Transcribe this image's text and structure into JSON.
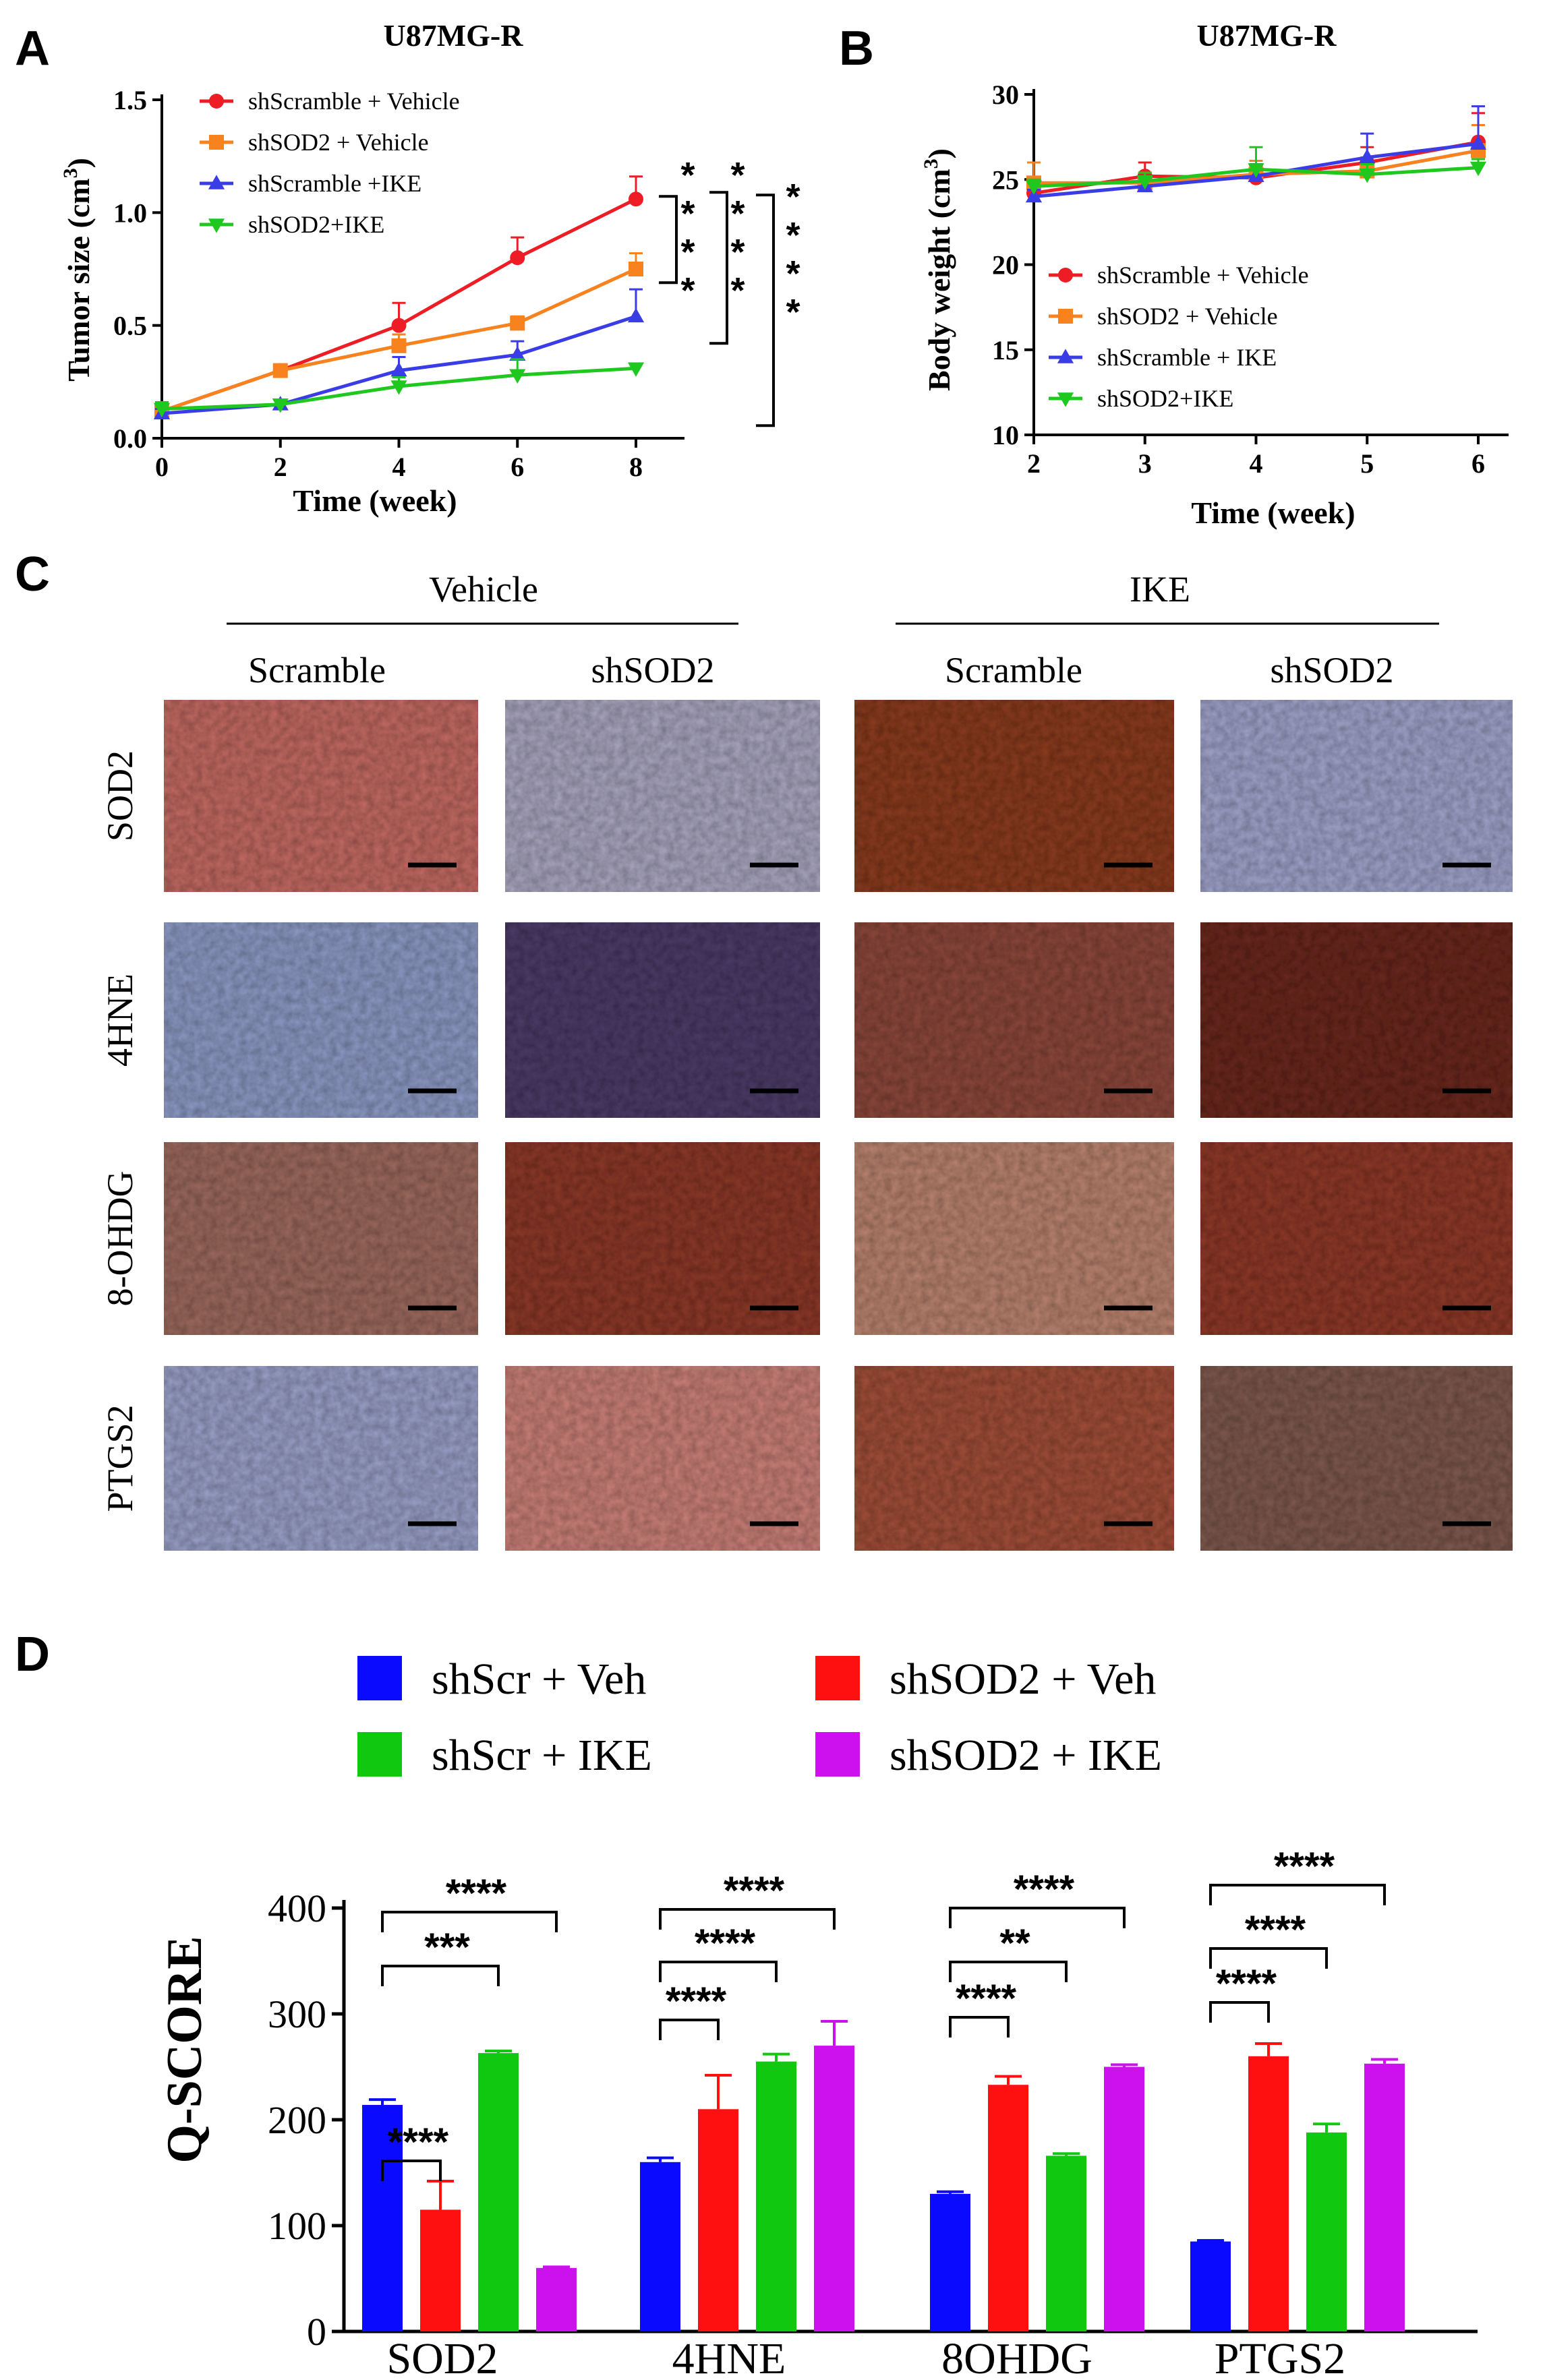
{
  "panels": {
    "A": "A",
    "B": "B",
    "C": "C",
    "D": "D"
  },
  "chart_data": [
    {
      "id": "A",
      "type": "line",
      "title": "U87MG-R",
      "xlabel": "Time (week)",
      "ylabel": "Tumor size (cm3)",
      "ylabel_main": "Tumor size (cm",
      "ylabel_sup": "3",
      "ylabel_end": ")",
      "x": [
        0,
        2,
        4,
        6,
        8
      ],
      "xticks": [
        "0",
        "2",
        "4",
        "6",
        "8"
      ],
      "yticks": [
        "0.0",
        "0.5",
        "1.0",
        "1.5"
      ],
      "xlim": [
        0,
        8
      ],
      "ylim": [
        0,
        1.5
      ],
      "legend_position": "top-left",
      "series": [
        {
          "name": "shScramble + Vehicle",
          "color": "#ee1c24",
          "marker": "circle",
          "values": [
            0.12,
            0.3,
            0.5,
            0.8,
            1.06
          ],
          "errors": [
            0.02,
            0.02,
            0.1,
            0.09,
            0.1
          ]
        },
        {
          "name": "shSOD2 + Vehicle",
          "color": "#f7821e",
          "marker": "square",
          "values": [
            0.12,
            0.3,
            0.41,
            0.51,
            0.75
          ],
          "errors": [
            0.02,
            0.02,
            0.05,
            0.03,
            0.07
          ]
        },
        {
          "name": "shScramble +IKE",
          "color": "#3a3ce6",
          "marker": "triangle-up",
          "values": [
            0.11,
            0.15,
            0.3,
            0.37,
            0.54
          ],
          "errors": [
            0.02,
            0.02,
            0.06,
            0.06,
            0.12
          ]
        },
        {
          "name": "shSOD2+IKE",
          "color": "#1ec81e",
          "marker": "triangle-down",
          "values": [
            0.13,
            0.15,
            0.23,
            0.28,
            0.31
          ],
          "errors": [
            0.03,
            0.02,
            0.04,
            0.07,
            0.02
          ]
        }
      ],
      "significance": [
        "****",
        "****",
        "****"
      ]
    },
    {
      "id": "B",
      "type": "line",
      "title": "U87MG-R",
      "xlabel": "Time (week)",
      "ylabel": "Body weight (cm3)",
      "ylabel_main": "Body weight (cm",
      "ylabel_sup": "3",
      "ylabel_end": ")",
      "x": [
        2,
        3,
        4,
        5,
        6
      ],
      "xticks": [
        "2",
        "3",
        "4",
        "5",
        "6"
      ],
      "yticks": [
        "10",
        "15",
        "20",
        "25",
        "30"
      ],
      "xlim": [
        2,
        6
      ],
      "ylim": [
        10,
        30
      ],
      "legend_position": "center-left",
      "series": [
        {
          "name": "shScramble + Vehicle",
          "color": "#ee1c24",
          "marker": "circle",
          "values": [
            24.2,
            25.2,
            25.1,
            26.0,
            27.2
          ],
          "errors": [
            0.5,
            0.8,
            0.7,
            0.9,
            1.7
          ]
        },
        {
          "name": "shSOD2 + Vehicle",
          "color": "#f7821e",
          "marker": "square",
          "values": [
            24.8,
            24.8,
            25.3,
            25.5,
            26.7
          ],
          "errors": [
            1.2,
            0.6,
            0.8,
            0.8,
            1.5
          ]
        },
        {
          "name": "shScramble + IKE",
          "color": "#3a3ce6",
          "marker": "triangle-up",
          "values": [
            24.0,
            24.6,
            25.2,
            26.3,
            27.1
          ],
          "errors": [
            0.4,
            0.5,
            0.7,
            1.4,
            2.2
          ]
        },
        {
          "name": "shSOD2+IKE",
          "color": "#1ec81e",
          "marker": "triangle-down",
          "values": [
            24.6,
            24.9,
            25.6,
            25.3,
            25.7
          ],
          "errors": [
            0.4,
            0.5,
            1.3,
            0.6,
            0.5
          ]
        }
      ]
    },
    {
      "id": "D",
      "type": "bar",
      "xlabel": "",
      "ylabel": "Q-SCORE",
      "categories": [
        "SOD2",
        "4HNE",
        "8OHDG",
        "PTGS2"
      ],
      "yticks": [
        "0",
        "100",
        "200",
        "300",
        "400"
      ],
      "ylim": [
        0,
        400
      ],
      "legend_position": "top",
      "series": [
        {
          "name": "shScr + Veh",
          "color": "#0a0aff",
          "values": [
            214,
            160,
            130,
            85
          ],
          "errors": [
            5,
            4,
            2,
            1
          ]
        },
        {
          "name": "shSOD2 + Veh",
          "color": "#ff1010",
          "values": [
            115,
            210,
            233,
            260
          ],
          "errors": [
            27,
            32,
            8,
            12
          ]
        },
        {
          "name": "shScr + IKE",
          "color": "#10c810",
          "values": [
            263,
            255,
            166,
            188
          ],
          "errors": [
            2,
            7,
            2,
            8
          ]
        },
        {
          "name": "shSOD2 + IKE",
          "color": "#cc10ee",
          "values": [
            60,
            270,
            250,
            253
          ],
          "errors": [
            1,
            23,
            2,
            4
          ]
        }
      ],
      "significance": [
        [
          "****",
          "***",
          "****"
        ],
        [
          "****",
          "****",
          "****"
        ],
        [
          "****",
          "**",
          "****"
        ],
        [
          "****",
          "****",
          "****"
        ]
      ]
    }
  ],
  "ihc": {
    "group_labels": [
      "Vehicle",
      "IKE"
    ],
    "column_labels": [
      "Scramble",
      "shSOD2",
      "Scramble",
      "shSOD2"
    ],
    "row_labels": [
      "SOD2",
      "4HNE",
      "8-OHDG",
      "PTGS2"
    ],
    "tile_colors": [
      [
        "#c26a63",
        "#a9a6be",
        "#8a3d24",
        "#9fa3c8"
      ],
      [
        "#8d9ac4",
        "#4d3e68",
        "#8c4a3e",
        "#6b2a22"
      ],
      [
        "#9c6a5e",
        "#8c3a2c",
        "#b9836f",
        "#8e3a2a"
      ],
      [
        "#9aa0c8",
        "#c98078",
        "#a04f3a",
        "#7e5a50"
      ]
    ]
  }
}
